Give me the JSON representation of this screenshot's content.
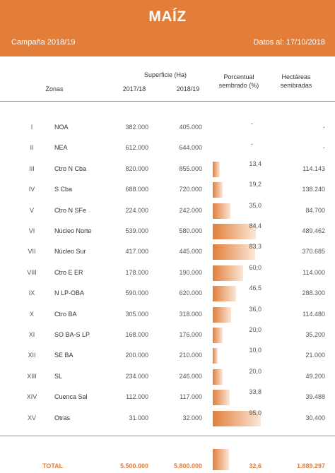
{
  "header": {
    "title": "MAÍZ",
    "campaign": "Campaña 2018/19",
    "date": "Datos al: 17/10/2018"
  },
  "columns": {
    "zonas": "Zonas",
    "superficie": "Superficie (Ha)",
    "y1": "2017/18",
    "y2": "2018/19",
    "porcentual_1": "Porcentual",
    "porcentual_2": "sembrado (%)",
    "hectareas_1": "Hectáreas",
    "hectareas_2": "sembradas"
  },
  "rows": [
    {
      "code": "I",
      "zone": "NOA",
      "s2017": "382.000",
      "s2018": "405.000",
      "pct": "-",
      "pct_value": 0,
      "ha": "-"
    },
    {
      "code": "II",
      "zone": "NEA",
      "s2017": "612.000",
      "s2018": "644.000",
      "pct": "-",
      "pct_value": 0,
      "ha": "-"
    },
    {
      "code": "III",
      "zone": "Ctro N Cba",
      "s2017": "820.000",
      "s2018": "855.000",
      "pct": "13,4",
      "pct_value": 13.4,
      "ha": "114.143"
    },
    {
      "code": "IV",
      "zone": "S Cba",
      "s2017": "688.000",
      "s2018": "720.000",
      "pct": "19,2",
      "pct_value": 19.2,
      "ha": "138.240"
    },
    {
      "code": "V",
      "zone": "Ctro N SFe",
      "s2017": "224.000",
      "s2018": "242.000",
      "pct": "35,0",
      "pct_value": 35.0,
      "ha": "84.700"
    },
    {
      "code": "VI",
      "zone": "Núcleo Norte",
      "s2017": "539.000",
      "s2018": "580.000",
      "pct": "84,4",
      "pct_value": 84.4,
      "ha": "489.462"
    },
    {
      "code": "VII",
      "zone": "Núcleo Sur",
      "s2017": "417.000",
      "s2018": "445.000",
      "pct": "83,3",
      "pct_value": 83.3,
      "ha": "370.685"
    },
    {
      "code": "VIII",
      "zone": "Ctro E ER",
      "s2017": "178.000",
      "s2018": "190.000",
      "pct": "60,0",
      "pct_value": 60.0,
      "ha": "114.000"
    },
    {
      "code": "IX",
      "zone": "N LP-OBA",
      "s2017": "590.000",
      "s2018": "620.000",
      "pct": "46,5",
      "pct_value": 46.5,
      "ha": "288.300"
    },
    {
      "code": "X",
      "zone": "Ctro BA",
      "s2017": "305.000",
      "s2018": "318.000",
      "pct": "36,0",
      "pct_value": 36.0,
      "ha": "114.480"
    },
    {
      "code": "XI",
      "zone": "SO BA-S LP",
      "s2017": "168.000",
      "s2018": "176.000",
      "pct": "20,0",
      "pct_value": 20.0,
      "ha": "35.200"
    },
    {
      "code": "XII",
      "zone": "SE BA",
      "s2017": "200.000",
      "s2018": "210.000",
      "pct": "10,0",
      "pct_value": 10.0,
      "ha": "21.000"
    },
    {
      "code": "XIII",
      "zone": "SL",
      "s2017": "234.000",
      "s2018": "246.000",
      "pct": "20,0",
      "pct_value": 20.0,
      "ha": "49.200"
    },
    {
      "code": "XIV",
      "zone": "Cuenca Sal",
      "s2017": "112.000",
      "s2018": "117.000",
      "pct": "33,8",
      "pct_value": 33.8,
      "ha": "39.488"
    },
    {
      "code": "XV",
      "zone": "Otras",
      "s2017": "31.000",
      "s2018": "32.000",
      "pct": "95,0",
      "pct_value": 95.0,
      "ha": "30.400"
    }
  ],
  "total": {
    "label": "TOTAL",
    "s2017": "5.500.000",
    "s2018": "5.800.000",
    "pct": "32,6",
    "pct_value": 32.6,
    "ha": "1.889.297"
  },
  "colors": {
    "accent": "#e27e3a"
  }
}
